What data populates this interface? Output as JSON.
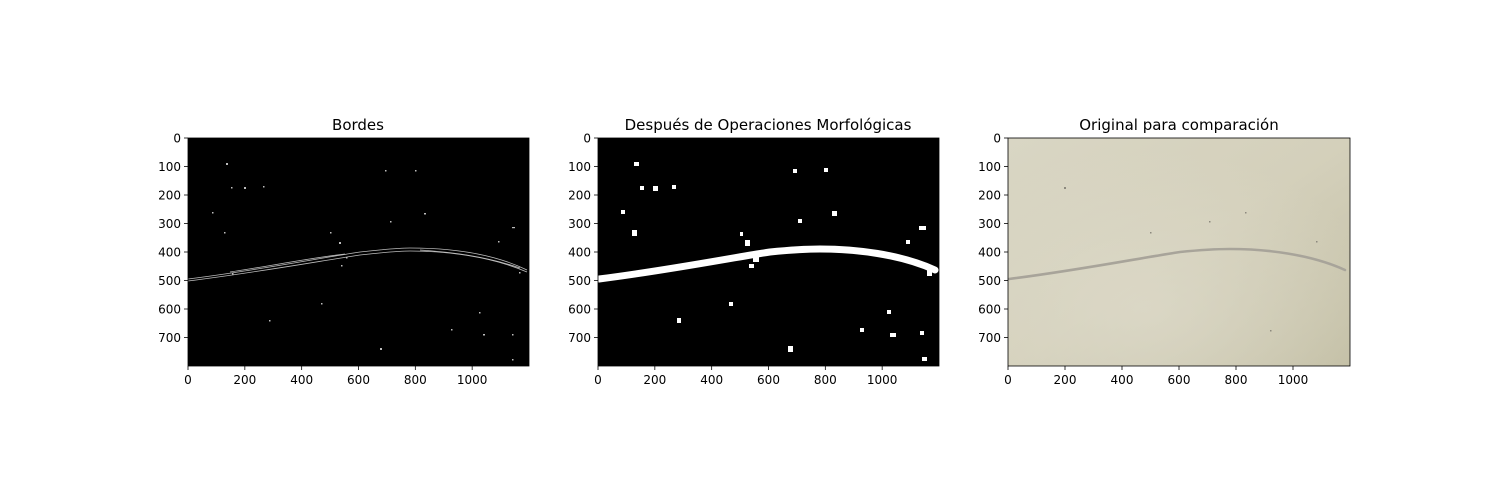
{
  "chart_data": [
    {
      "type": "image",
      "title": "Bordes",
      "image_extent": {
        "x": [
          0,
          1200
        ],
        "y": [
          800,
          0
        ]
      },
      "xticks": [
        0,
        200,
        400,
        600,
        800,
        1000
      ],
      "yticks": [
        0,
        100,
        200,
        300,
        400,
        500,
        600,
        700
      ],
      "background": "#000000",
      "ink": "#bdbdbd"
    },
    {
      "type": "image",
      "title": "Después de Operaciones Morfológicas",
      "image_extent": {
        "x": [
          0,
          1200
        ],
        "y": [
          800,
          0
        ]
      },
      "xticks": [
        0,
        200,
        400,
        600,
        800,
        1000
      ],
      "yticks": [
        0,
        100,
        200,
        300,
        400,
        500,
        600,
        700
      ],
      "background": "#000000",
      "ink": "#ffffff"
    },
    {
      "type": "image",
      "title": "Original para comparación",
      "image_extent": {
        "x": [
          0,
          1200
        ],
        "y": [
          800,
          0
        ]
      },
      "xticks": [
        0,
        200,
        400,
        600,
        800,
        1000
      ],
      "yticks": [
        0,
        100,
        200,
        300,
        400,
        500,
        600,
        700
      ],
      "background": "#d6d3bf",
      "ink": "#a8a49a"
    }
  ]
}
